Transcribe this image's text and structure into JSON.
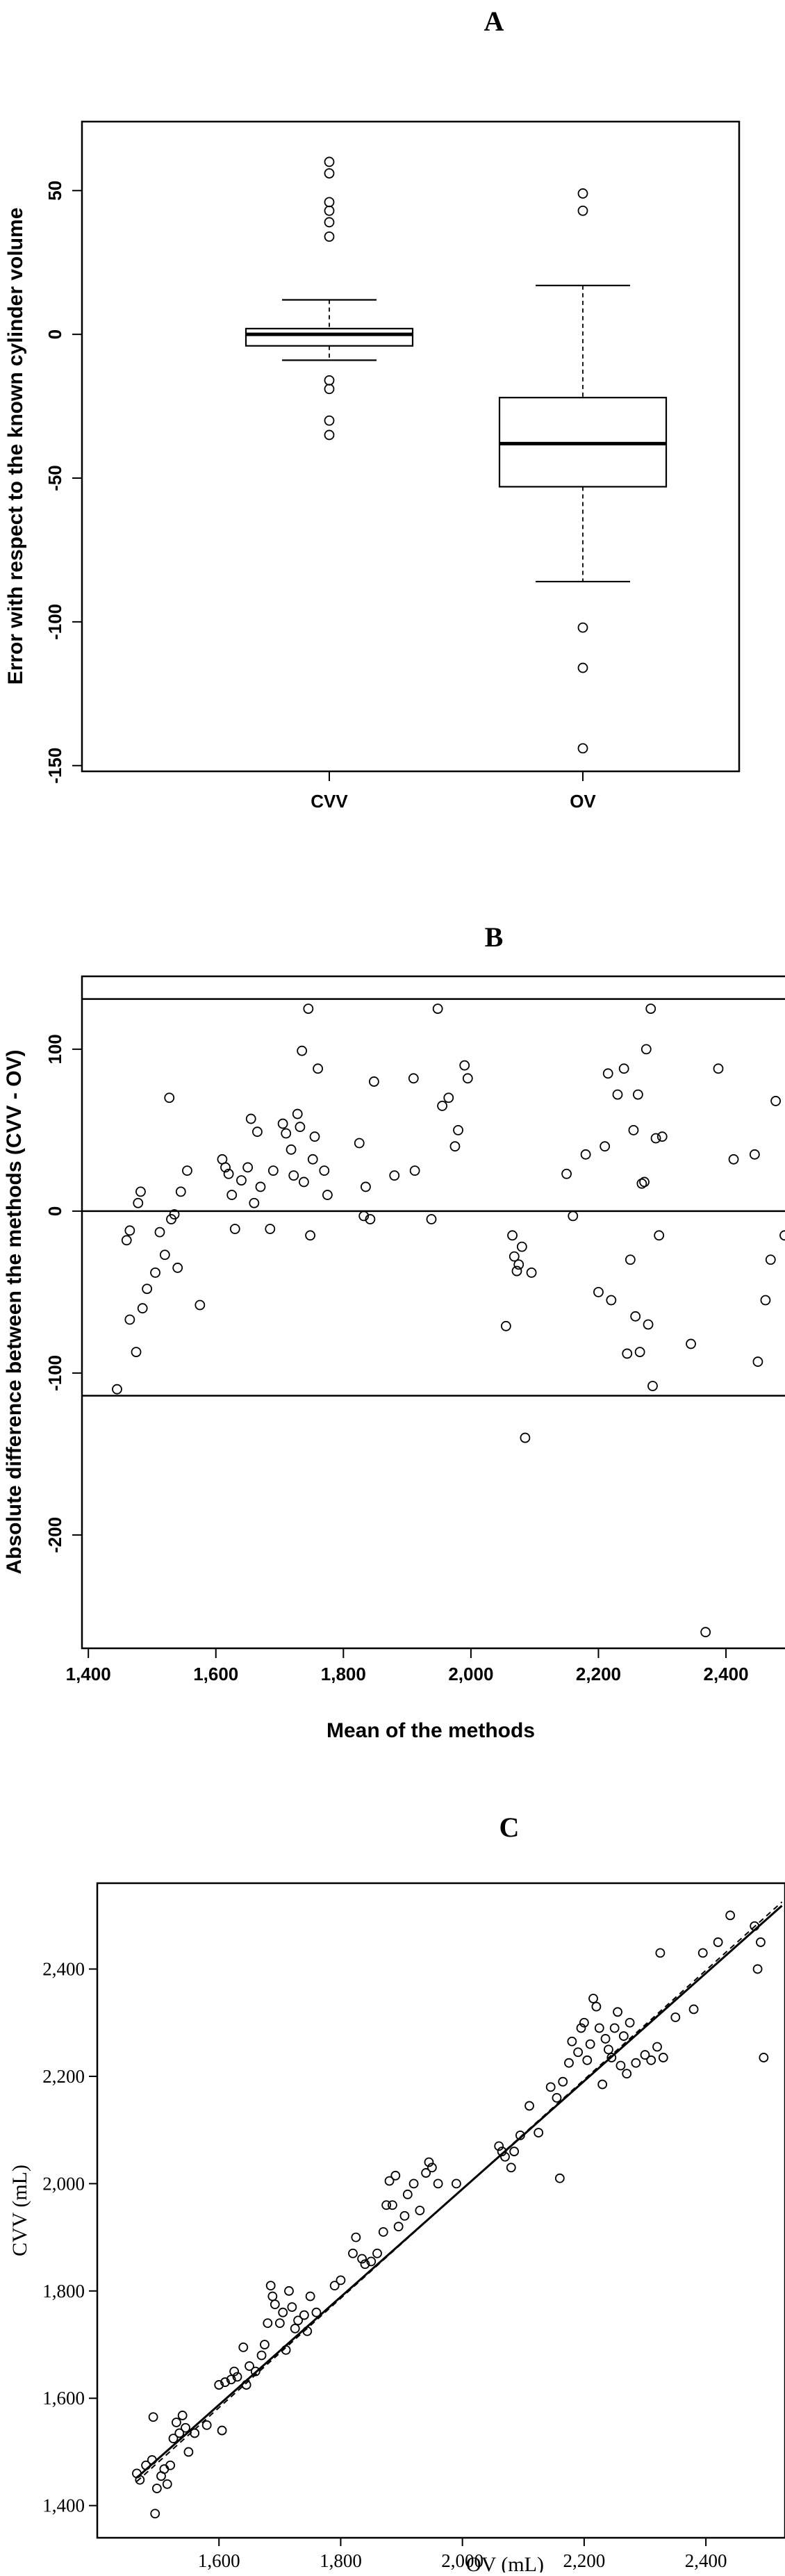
{
  "chart_data": [
    {
      "type": "boxplot",
      "panel_label": "A",
      "title": "",
      "xlabel": "",
      "ylabel": "Error with respect to the known cylinder volume",
      "ylim": [
        -152,
        74
      ],
      "yticks": [
        50,
        0,
        -50,
        -100,
        -150
      ],
      "categories": [
        "CVV",
        "OV"
      ],
      "boxes": [
        {
          "name": "CVV",
          "whisker_low": -9,
          "q1": -4,
          "median": 0,
          "q3": 2,
          "whisker_high": 12,
          "outliers": [
            60,
            56,
            46,
            43,
            39,
            34,
            -16,
            -19,
            -30,
            -35
          ]
        },
        {
          "name": "OV",
          "whisker_low": -86,
          "q1": -53,
          "median": -38,
          "q3": -22,
          "whisker_high": 17,
          "outliers": [
            49,
            43,
            -102,
            -116,
            -144
          ]
        }
      ]
    },
    {
      "type": "scatter",
      "panel_label": "B",
      "title": "",
      "xlabel": "Mean of the methods",
      "ylabel": "Absolute difference between the methods (CVV - OV)",
      "xlim": [
        1390,
        2510
      ],
      "ylim": [
        -270,
        145
      ],
      "xticks": [
        "1,400",
        "1,600",
        "1,800",
        "2,000",
        "2,200",
        "2,400"
      ],
      "yticks": [
        "100",
        "0",
        "-100",
        "-200"
      ],
      "hlines": [
        131,
        0,
        -114
      ],
      "points": [
        [
          1445,
          -110
        ],
        [
          1460,
          -18
        ],
        [
          1465,
          -12
        ],
        [
          1465,
          -67
        ],
        [
          1475,
          -87
        ],
        [
          1478,
          5
        ],
        [
          1482,
          12
        ],
        [
          1485,
          -60
        ],
        [
          1492,
          -48
        ],
        [
          1505,
          -38
        ],
        [
          1512,
          -13
        ],
        [
          1520,
          -27
        ],
        [
          1527,
          70
        ],
        [
          1530,
          -5
        ],
        [
          1535,
          -2
        ],
        [
          1540,
          -35
        ],
        [
          1545,
          12
        ],
        [
          1555,
          25
        ],
        [
          1575,
          -58
        ],
        [
          1610,
          32
        ],
        [
          1615,
          27
        ],
        [
          1620,
          23
        ],
        [
          1625,
          10
        ],
        [
          1630,
          -11
        ],
        [
          1640,
          19
        ],
        [
          1650,
          27
        ],
        [
          1655,
          57
        ],
        [
          1660,
          5
        ],
        [
          1665,
          49
        ],
        [
          1670,
          15
        ],
        [
          1685,
          -11
        ],
        [
          1690,
          25
        ],
        [
          1705,
          54
        ],
        [
          1710,
          48
        ],
        [
          1718,
          38
        ],
        [
          1722,
          22
        ],
        [
          1728,
          60
        ],
        [
          1732,
          52
        ],
        [
          1735,
          99
        ],
        [
          1738,
          18
        ],
        [
          1745,
          125
        ],
        [
          1748,
          -15
        ],
        [
          1752,
          32
        ],
        [
          1755,
          46
        ],
        [
          1760,
          88
        ],
        [
          1770,
          25
        ],
        [
          1775,
          10
        ],
        [
          1825,
          42
        ],
        [
          1832,
          -3
        ],
        [
          1835,
          15
        ],
        [
          1842,
          -5
        ],
        [
          1848,
          80
        ],
        [
          1880,
          22
        ],
        [
          1910,
          82
        ],
        [
          1912,
          25
        ],
        [
          1938,
          -5
        ],
        [
          1948,
          125
        ],
        [
          1955,
          65
        ],
        [
          1965,
          70
        ],
        [
          1975,
          40
        ],
        [
          1980,
          50
        ],
        [
          1990,
          90
        ],
        [
          1995,
          82
        ],
        [
          2055,
          -71
        ],
        [
          2065,
          -15
        ],
        [
          2068,
          -28
        ],
        [
          2072,
          -37
        ],
        [
          2075,
          -33
        ],
        [
          2080,
          -22
        ],
        [
          2085,
          -140
        ],
        [
          2095,
          -38
        ],
        [
          2150,
          23
        ],
        [
          2160,
          -3
        ],
        [
          2180,
          35
        ],
        [
          2200,
          -50
        ],
        [
          2210,
          40
        ],
        [
          2215,
          85
        ],
        [
          2220,
          -55
        ],
        [
          2230,
          72
        ],
        [
          2240,
          88
        ],
        [
          2245,
          -88
        ],
        [
          2250,
          -30
        ],
        [
          2255,
          50
        ],
        [
          2258,
          -65
        ],
        [
          2262,
          72
        ],
        [
          2265,
          -87
        ],
        [
          2268,
          17
        ],
        [
          2272,
          18
        ],
        [
          2275,
          100
        ],
        [
          2278,
          -70
        ],
        [
          2282,
          125
        ],
        [
          2285,
          -108
        ],
        [
          2290,
          45
        ],
        [
          2295,
          -15
        ],
        [
          2300,
          46
        ],
        [
          2345,
          -82
        ],
        [
          2368,
          -260
        ],
        [
          2388,
          88
        ],
        [
          2412,
          32
        ],
        [
          2445,
          35
        ],
        [
          2450,
          -93
        ],
        [
          2462,
          -55
        ],
        [
          2470,
          -30
        ],
        [
          2478,
          68
        ],
        [
          2492,
          -15
        ]
      ]
    },
    {
      "type": "scatter",
      "panel_label": "C",
      "title": "",
      "xlabel": "OV (mL)",
      "ylabel": "CVV (mL)",
      "xlim": [
        1400,
        2530
      ],
      "ylim": [
        1340,
        2560
      ],
      "xticks": [
        "1,600",
        "1,800",
        "2,000",
        "2,200",
        "2,400"
      ],
      "yticks": [
        "2,400",
        "2,200",
        "2,000",
        "1,800",
        "1,600",
        "1,400"
      ],
      "fit_lines": [
        {
          "style": "solid",
          "x": [
            1465,
            2525
          ],
          "y": [
            1452,
            2518
          ]
        },
        {
          "style": "dashed",
          "x": [
            1465,
            2525
          ],
          "y": [
            1445,
            2525
          ]
        }
      ],
      "points": [
        [
          1465,
          1460
        ],
        [
          1470,
          1448
        ],
        [
          1480,
          1475
        ],
        [
          1490,
          1485
        ],
        [
          1492,
          1565
        ],
        [
          1495,
          1385
        ],
        [
          1498,
          1432
        ],
        [
          1505,
          1455
        ],
        [
          1510,
          1468
        ],
        [
          1515,
          1440
        ],
        [
          1520,
          1475
        ],
        [
          1525,
          1525
        ],
        [
          1530,
          1555
        ],
        [
          1535,
          1535
        ],
        [
          1540,
          1568
        ],
        [
          1545,
          1545
        ],
        [
          1550,
          1500
        ],
        [
          1560,
          1535
        ],
        [
          1580,
          1550
        ],
        [
          1600,
          1625
        ],
        [
          1605,
          1540
        ],
        [
          1610,
          1630
        ],
        [
          1620,
          1635
        ],
        [
          1625,
          1650
        ],
        [
          1630,
          1640
        ],
        [
          1640,
          1695
        ],
        [
          1645,
          1625
        ],
        [
          1650,
          1660
        ],
        [
          1660,
          1650
        ],
        [
          1670,
          1680
        ],
        [
          1675,
          1700
        ],
        [
          1680,
          1740
        ],
        [
          1685,
          1810
        ],
        [
          1688,
          1790
        ],
        [
          1692,
          1775
        ],
        [
          1700,
          1740
        ],
        [
          1705,
          1760
        ],
        [
          1710,
          1690
        ],
        [
          1715,
          1800
        ],
        [
          1720,
          1770
        ],
        [
          1725,
          1730
        ],
        [
          1730,
          1745
        ],
        [
          1740,
          1755
        ],
        [
          1745,
          1725
        ],
        [
          1750,
          1790
        ],
        [
          1760,
          1760
        ],
        [
          1790,
          1810
        ],
        [
          1800,
          1820
        ],
        [
          1820,
          1870
        ],
        [
          1825,
          1900
        ],
        [
          1835,
          1860
        ],
        [
          1840,
          1850
        ],
        [
          1850,
          1855
        ],
        [
          1860,
          1870
        ],
        [
          1870,
          1910
        ],
        [
          1875,
          1960
        ],
        [
          1880,
          2005
        ],
        [
          1885,
          1960
        ],
        [
          1890,
          2015
        ],
        [
          1895,
          1920
        ],
        [
          1905,
          1940
        ],
        [
          1910,
          1980
        ],
        [
          1920,
          2000
        ],
        [
          1930,
          1950
        ],
        [
          1940,
          2020
        ],
        [
          1945,
          2040
        ],
        [
          1950,
          2030
        ],
        [
          1960,
          2000
        ],
        [
          1990,
          2000
        ],
        [
          2060,
          2070
        ],
        [
          2065,
          2060
        ],
        [
          2070,
          2050
        ],
        [
          2080,
          2030
        ],
        [
          2085,
          2060
        ],
        [
          2095,
          2090
        ],
        [
          2110,
          2145
        ],
        [
          2125,
          2095
        ],
        [
          2145,
          2180
        ],
        [
          2155,
          2160
        ],
        [
          2160,
          2010
        ],
        [
          2165,
          2190
        ],
        [
          2175,
          2225
        ],
        [
          2180,
          2265
        ],
        [
          2190,
          2245
        ],
        [
          2195,
          2290
        ],
        [
          2200,
          2300
        ],
        [
          2205,
          2230
        ],
        [
          2210,
          2260
        ],
        [
          2215,
          2345
        ],
        [
          2220,
          2330
        ],
        [
          2225,
          2290
        ],
        [
          2230,
          2185
        ],
        [
          2235,
          2270
        ],
        [
          2240,
          2250
        ],
        [
          2245,
          2235
        ],
        [
          2250,
          2290
        ],
        [
          2255,
          2320
        ],
        [
          2260,
          2220
        ],
        [
          2265,
          2275
        ],
        [
          2270,
          2205
        ],
        [
          2275,
          2300
        ],
        [
          2285,
          2225
        ],
        [
          2300,
          2240
        ],
        [
          2310,
          2230
        ],
        [
          2320,
          2255
        ],
        [
          2325,
          2430
        ],
        [
          2330,
          2235
        ],
        [
          2350,
          2310
        ],
        [
          2380,
          2325
        ],
        [
          2395,
          2430
        ],
        [
          2420,
          2450
        ],
        [
          2440,
          2500
        ],
        [
          2480,
          2480
        ],
        [
          2485,
          2400
        ],
        [
          2490,
          2450
        ],
        [
          2495,
          2235
        ]
      ]
    }
  ]
}
